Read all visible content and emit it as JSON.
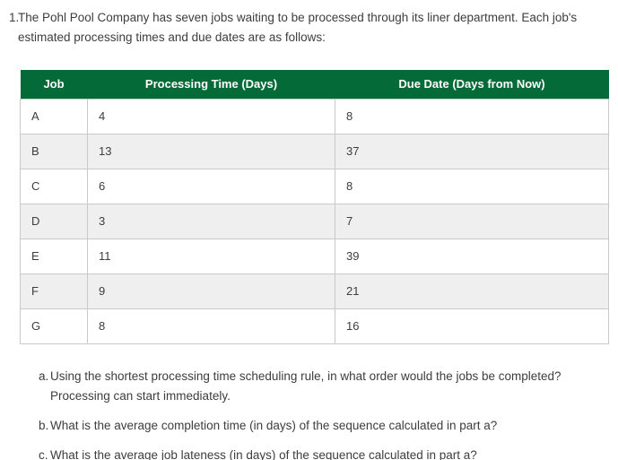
{
  "problem": {
    "number": "1.",
    "text": "The Pohl Pool Company has seven jobs waiting to be processed through its liner department. Each job's estimated processing times and due dates are as follows:"
  },
  "table": {
    "headers": [
      "Job",
      "Processing Time (Days)",
      "Due Date (Days from Now)"
    ],
    "rows": [
      {
        "job": "A",
        "processing_time": "4",
        "due_date": "8"
      },
      {
        "job": "B",
        "processing_time": "13",
        "due_date": "37"
      },
      {
        "job": "C",
        "processing_time": "6",
        "due_date": "8"
      },
      {
        "job": "D",
        "processing_time": "3",
        "due_date": "7"
      },
      {
        "job": "E",
        "processing_time": "11",
        "due_date": "39"
      },
      {
        "job": "F",
        "processing_time": "9",
        "due_date": "21"
      },
      {
        "job": "G",
        "processing_time": "8",
        "due_date": "16"
      }
    ],
    "colors": {
      "header_bg": "#046a38",
      "header_text": "#ffffff",
      "stripe": "#efefef",
      "border": "#c9c9c9",
      "body_text": "#3d3d3d"
    }
  },
  "questions": [
    {
      "label": "a.",
      "text": "Using the shortest processing time scheduling rule, in what order would the jobs be completed? Processing can start immediately."
    },
    {
      "label": "b.",
      "text": "What is the average completion time (in days) of the sequence calculated in part a?"
    },
    {
      "label": "c.",
      "text": "What is the average job lateness (in days) of the sequence calculated in part a?"
    }
  ]
}
